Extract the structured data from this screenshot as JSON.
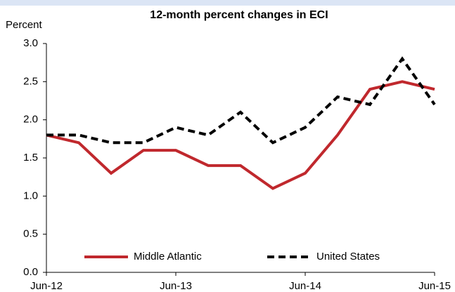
{
  "chart_data": {
    "type": "line",
    "title": "12-month percent changes in ECI",
    "y_label": "Percent",
    "categories": [
      "Jun-12",
      null,
      null,
      null,
      "Jun-13",
      null,
      null,
      null,
      "Jun-14",
      null,
      null,
      null,
      "Jun-15"
    ],
    "series": [
      {
        "name": "Middle Atlantic",
        "color": "#c0282d",
        "dash": false,
        "values": [
          1.8,
          1.7,
          1.3,
          1.6,
          1.6,
          1.4,
          1.4,
          1.1,
          1.3,
          1.8,
          2.4,
          2.5,
          2.4
        ]
      },
      {
        "name": "United States",
        "color": "#000000",
        "dash": true,
        "values": [
          1.8,
          1.8,
          1.7,
          1.7,
          1.9,
          1.8,
          2.1,
          1.7,
          1.9,
          2.3,
          2.2,
          2.8,
          2.2
        ]
      }
    ],
    "ylim": [
      0,
      3
    ],
    "yticks": [
      {
        "value": 0,
        "label": "0.0"
      },
      0.5,
      {
        "value": 1,
        "label": "1.0"
      },
      1.5,
      {
        "value": 2,
        "label": "2.0"
      },
      2.5,
      {
        "value": 3,
        "label": "3.0"
      }
    ],
    "grid": false,
    "legend": "bottom"
  }
}
